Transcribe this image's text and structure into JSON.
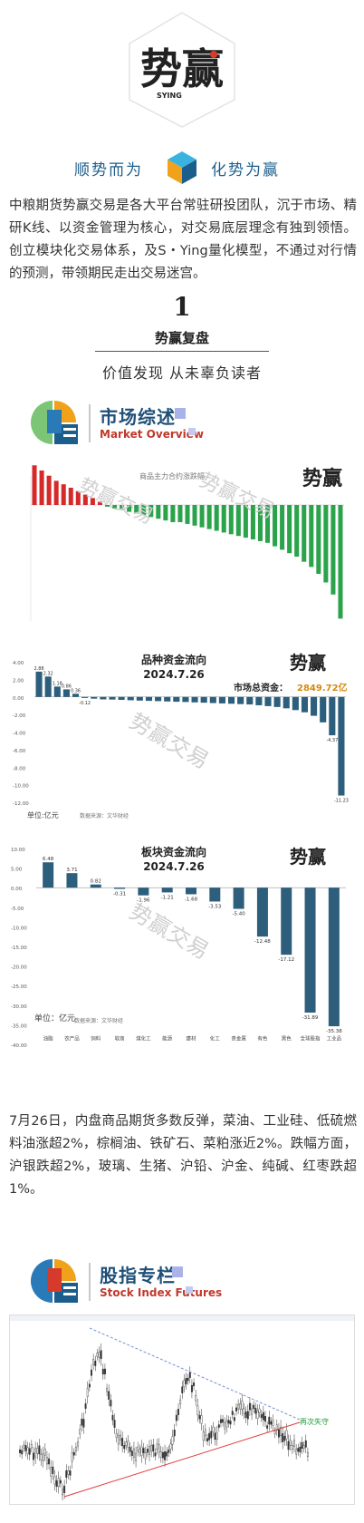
{
  "header": {
    "logo_text_big": "势赢",
    "logo_brand": "SYING",
    "slogan_left": "顺势而为",
    "slogan_right": "化势为赢"
  },
  "intro": "中粮期货势赢交易是各大平台常驻研投团队，沉于市场、精研K线、以资金管理为核心，对交易底层理念有独到领悟。创立模块化交易体系，及S・Ying量化模型，不通过对行情的预测，带领期民走出交易迷宫。",
  "section1": {
    "number": "1",
    "title": "势赢复盘",
    "subtitle": "价值发现 从未辜负读者"
  },
  "market_overview": {
    "title_zh": "市场综述",
    "title_en": "Market Overview"
  },
  "charts": {
    "chart1_title": "商品主力合约涨跌幅",
    "chart2_title": "品种资金流向",
    "chart2_date": "2024.7.26",
    "chart2_total_label": "市场总资金：",
    "chart2_total_value": "2849.72亿",
    "chart2_unit": "单位:亿元",
    "chart2_source": "数据来源：文华财经",
    "chart3_title": "板块资金流向",
    "chart3_date": "2024.7.26",
    "chart3_unit": "单位：亿元",
    "chart3_source": "数据来源：文华财经",
    "watermark": "势赢交易"
  },
  "chart_data": [
    {
      "type": "bar",
      "title": "商品主力合约涨跌幅",
      "series": [
        {
          "values": [
            2.3,
            2.0,
            1.7,
            1.4,
            1.2,
            1.0,
            0.8,
            0.6,
            0.4,
            0.2,
            -0.1,
            -0.2,
            -0.3,
            -0.4,
            -0.5,
            -0.6,
            -0.7,
            -0.8,
            -0.9,
            -1.0,
            -1.0,
            -1.1,
            -1.2,
            -1.3,
            -1.4,
            -1.5,
            -1.6,
            -1.7,
            -1.8,
            -1.9,
            -2.0,
            -2.1,
            -2.2,
            -2.4,
            -2.6,
            -2.8,
            -3.0,
            -3.3,
            -3.6,
            -4.0,
            -4.5,
            -5.2,
            -6.6
          ]
        }
      ]
    },
    {
      "type": "bar",
      "title": "品种资金流向",
      "ylim": [
        -12,
        4
      ],
      "yticks": [
        "4.00",
        "2.00",
        "0.00",
        "-2.00",
        "-4.00",
        "-6.00",
        "-8.00",
        "-10.00",
        "-12.00"
      ],
      "values": [
        2.88,
        2.32,
        1.18,
        0.86,
        0.36,
        -0.12,
        -0.2,
        -0.28,
        -0.3,
        -0.34,
        -0.38,
        -0.42,
        -0.45,
        -0.48,
        -0.52,
        -0.55,
        -0.58,
        -0.62,
        -0.66,
        -0.7,
        -0.74,
        -0.78,
        -0.82,
        -0.86,
        -0.95,
        -1.05,
        -1.15,
        -1.3,
        -1.5,
        -1.75,
        -2.15,
        -2.9,
        -4.37,
        -11.23
      ],
      "labels": [
        "2.88",
        "2.32",
        "1.18",
        "0.86",
        "0.36",
        "-0.12",
        "",
        "",
        "",
        "",
        "",
        "",
        "",
        "",
        "",
        "",
        "",
        "",
        "",
        "",
        "",
        "",
        "",
        "",
        "",
        "",
        "",
        "",
        "",
        "",
        "",
        "",
        "-4.37",
        "-11.23"
      ]
    },
    {
      "type": "bar",
      "title": "板块资金流向",
      "ylim": [
        -40,
        10
      ],
      "yticks": [
        "10.00",
        "5.00",
        "0.00",
        "-5.00",
        "-10.00",
        "-15.00",
        "-20.00",
        "-25.00",
        "-30.00",
        "-35.00",
        "-40.00"
      ],
      "categories": [
        "油脂",
        "农产品",
        "饲料",
        "软商",
        "煤化工",
        "能源",
        "建材",
        "化工",
        "贵金属",
        "有色",
        "黑色",
        "全球股指",
        "工业品"
      ],
      "values": [
        6.48,
        3.71,
        0.82,
        -0.31,
        -1.96,
        -1.21,
        -1.68,
        -3.53,
        -5.4,
        -12.48,
        -17.12,
        -31.89,
        -35.38
      ],
      "labels": [
        "6.48",
        "3.71",
        "0.82",
        "-0.31",
        "-1.96",
        "-1.21",
        "-1.68",
        "-3.53",
        "-5.40",
        "-12.48",
        "-17.12",
        "-31.89",
        "-35.38"
      ]
    }
  ],
  "paragraph2": "7月26日，内盘商品期货多数反弹，菜油、工业硅、低硫燃料油涨超2%，棕榈油、铁矿石、菜粕涨近2%。跌幅方面，沪银跌超2%，玻璃、生猪、沪铅、沪金、纯碱、红枣跌超1%。",
  "stock_index": {
    "title_zh": "股指专栏",
    "title_en": "Stock Index Futures",
    "annotation": "再次失守"
  },
  "colors": {
    "accent_blue": "#1f4f78",
    "accent_red": "#c0392b",
    "bar_up": "#d62a2a",
    "bar_down": "#2aa34a",
    "flow_bar": "#2d5f7d"
  },
  "icons": [
    "cube-logo-icon",
    "section-mark-icon"
  ]
}
